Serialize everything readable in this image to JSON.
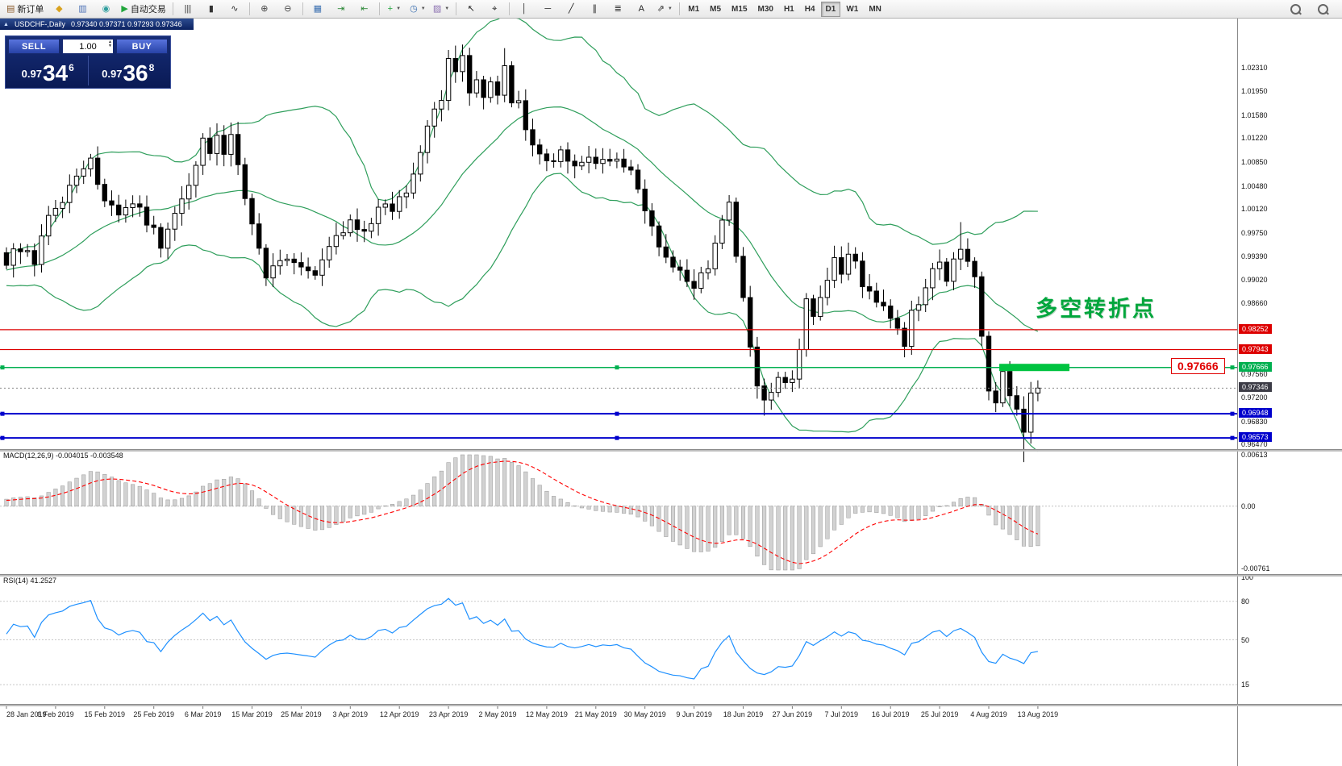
{
  "window": {
    "collapse_icon": "▲",
    "symbol": "USDCHF-,Daily",
    "ohlc": "0.97340 0.97371 0.97293 0.97346"
  },
  "toolbar": {
    "buttons": [
      {
        "name": "new-order-button",
        "glyph": "▤",
        "glyph_color": "#8a5a2a",
        "label": "新订单"
      },
      {
        "name": "market-watch-icon",
        "glyph": "◆",
        "glyph_color": "#d9a21f"
      },
      {
        "name": "data-window-icon",
        "glyph": "▥",
        "glyph_color": "#4a6fb5"
      },
      {
        "name": "navigator-icon",
        "glyph": "◉",
        "glyph_color": "#2f9e9e"
      },
      {
        "name": "autotrading-button",
        "glyph": "▶",
        "glyph_color": "#21a63c",
        "label": "自动交易"
      },
      {
        "sep": true
      },
      {
        "name": "bar-chart-icon",
        "glyph": "|||",
        "glyph_color": "#333"
      },
      {
        "name": "candlestick-chart-icon",
        "glyph": "▮",
        "glyph_color": "#333"
      },
      {
        "name": "line-chart-icon",
        "glyph": "∿",
        "glyph_color": "#333"
      },
      {
        "sep": true
      },
      {
        "name": "zoom-in-icon",
        "glyph": "⊕",
        "glyph_color": "#444"
      },
      {
        "name": "zoom-out-icon",
        "glyph": "⊖",
        "glyph_color": "#444"
      },
      {
        "sep": true
      },
      {
        "name": "tile-windows-icon",
        "glyph": "▦",
        "glyph_color": "#3a6fb0"
      },
      {
        "name": "auto-scroll-icon",
        "glyph": "⇥",
        "glyph_color": "#2f8a3a"
      },
      {
        "name": "chart-shift-icon",
        "glyph": "⇤",
        "glyph_color": "#2f8a3a"
      },
      {
        "sep": true
      },
      {
        "name": "indicators-icon",
        "glyph": "+",
        "glyph_color": "#1fa43a",
        "caret": true
      },
      {
        "name": "periods-icon",
        "glyph": "◷",
        "glyph_color": "#3a6fb0",
        "caret": true
      },
      {
        "name": "templates-icon",
        "glyph": "▨",
        "glyph_color": "#8a6fb0",
        "caret": true
      },
      {
        "sep": true
      },
      {
        "name": "cursor-icon",
        "glyph": "↖",
        "glyph_color": "#222"
      },
      {
        "name": "crosshair-icon",
        "glyph": "⌖",
        "glyph_color": "#222"
      },
      {
        "sep": true
      },
      {
        "name": "vertical-line-icon",
        "glyph": "│",
        "glyph_color": "#222"
      },
      {
        "name": "horizontal-line-icon",
        "glyph": "─",
        "glyph_color": "#222"
      },
      {
        "name": "trendline-icon",
        "glyph": "╱",
        "glyph_color": "#222"
      },
      {
        "name": "channel-icon",
        "glyph": "∥",
        "glyph_color": "#222"
      },
      {
        "name": "fibonacci-icon",
        "glyph": "≣",
        "glyph_color": "#222"
      },
      {
        "name": "text-icon",
        "glyph": "A",
        "glyph_color": "#222"
      },
      {
        "name": "arrows-icon",
        "glyph": "⇗",
        "glyph_color": "#222",
        "caret": true
      },
      {
        "sep": true
      }
    ],
    "timeframes": [
      "M1",
      "M5",
      "M15",
      "M30",
      "H1",
      "H4",
      "D1",
      "W1",
      "MN"
    ],
    "active_timeframe": "D1",
    "right_buttons": [
      {
        "name": "search-back-icon"
      },
      {
        "name": "search-forward-icon"
      }
    ]
  },
  "trade_panel": {
    "sell_label": "SELL",
    "buy_label": "BUY",
    "volume": "1.00",
    "sell_price": {
      "base": "0.97",
      "big": "34",
      "sup": "6"
    },
    "buy_price": {
      "base": "0.97",
      "big": "36",
      "sup": "8"
    }
  },
  "annotations": {
    "turning_point": "多空转折点",
    "price_callout": "0.97666"
  },
  "price_axis": {
    "ticks": [
      {
        "label": "1.02310",
        "value": 1.0231
      },
      {
        "label": "1.01950",
        "value": 1.0195
      },
      {
        "label": "1.01580",
        "value": 1.0158
      },
      {
        "label": "1.01220",
        "value": 1.0122
      },
      {
        "label": "1.00850",
        "value": 1.0085
      },
      {
        "label": "1.00480",
        "value": 1.0048
      },
      {
        "label": "1.00120",
        "value": 1.0012
      },
      {
        "label": "0.99750",
        "value": 0.9975
      },
      {
        "label": "0.99390",
        "value": 0.9939
      },
      {
        "label": "0.99020",
        "value": 0.9902
      },
      {
        "label": "0.98660",
        "value": 0.9866
      },
      {
        "label": "0.97560",
        "value": 0.9756
      },
      {
        "label": "0.97200",
        "value": 0.972
      },
      {
        "label": "0.96830",
        "value": 0.9683
      },
      {
        "label": "0.96470",
        "value": 0.9647
      }
    ]
  },
  "macd_panel": {
    "label": "MACD(12,26,9) -0.004015 -0.003548",
    "axis_top": "0.00613",
    "axis_zero": "0.00",
    "axis_bottom": "-0.00761",
    "scale_max": 0.00613,
    "scale_min": -0.00761
  },
  "rsi_panel": {
    "label": "RSI(14) 41.2527",
    "axis_labels": [
      {
        "text": "100",
        "value": 100
      },
      {
        "text": "80",
        "value": 80
      },
      {
        "text": "50",
        "value": 50
      },
      {
        "text": "15",
        "value": 15
      }
    ],
    "levels": [
      80,
      50,
      15
    ]
  },
  "time_axis": {
    "label_step": 7,
    "labels": [
      "28 Jan 2019",
      "6 Feb 2019",
      "15 Feb 2019",
      "25 Feb 2019",
      "6 Mar 2019",
      "15 Mar 2019",
      "25 Mar 2019",
      "3 Apr 2019",
      "12 Apr 2019",
      "23 Apr 2019",
      "2 May 2019",
      "12 May 2019",
      "21 May 2019",
      "30 May 2019",
      "9 Jun 2019",
      "18 Jun 2019",
      "27 Jun 2019",
      "7 Jul 2019",
      "16 Jul 2019",
      "25 Jul 2019",
      "4 Aug 2019",
      "13 Aug 2019"
    ]
  },
  "colors": {
    "bollinger": "#2e9e5b",
    "candle_up_fill": "#ffffff",
    "candle_down_fill": "#000000",
    "candle_stroke": "#000000",
    "macd_bar_fill": "#d2d2d2",
    "macd_bar_stroke": "#979797",
    "macd_signal": "#ff0000",
    "rsi_line": "#1e90ff",
    "level_red": "#dd0000",
    "level_green": "#00b050",
    "level_green_bright": "#00c340",
    "level_blue": "#0000cc",
    "current_badge": "#3c3c46",
    "current_line": "#888888"
  },
  "chart_data": {
    "type": "candlestick",
    "symbol": "USDCHF",
    "timeframe": "Daily",
    "count": 148,
    "y_min": 0.964,
    "y_max": 1.029,
    "current_price": 0.97346,
    "indicators": {
      "bollinger": {
        "period": 20,
        "deviation": 2
      },
      "macd": {
        "fast": 12,
        "slow": 26,
        "signal": 9
      },
      "rsi": {
        "period": 14
      }
    },
    "levels": [
      {
        "price": 0.98252,
        "label": "0.98252",
        "color": "red"
      },
      {
        "price": 0.97943,
        "label": "0.97943",
        "color": "red"
      },
      {
        "price": 0.97666,
        "label": "0.97666",
        "color": "green",
        "highlight": {
          "from_index": 141.5,
          "to_index": 151.5,
          "thickness": 9
        }
      },
      {
        "price": 0.96948,
        "label": "0.96948",
        "color": "blue"
      },
      {
        "price": 0.96573,
        "label": "0.96573",
        "color": "blue"
      }
    ],
    "current_label": "0.97346",
    "long_wicks": [
      {
        "index": 71,
        "up": 0.0016,
        "down": 0
      },
      {
        "index": 108,
        "up": 0,
        "down": 0.0012
      },
      {
        "index": 136,
        "up": 0.0028,
        "down": 0
      },
      {
        "index": 145,
        "up": 0,
        "down": 0.003
      }
    ],
    "anchors": [
      [
        0,
        0.9925
      ],
      [
        2,
        0.9955
      ],
      [
        4,
        0.9935
      ],
      [
        7,
        1.002
      ],
      [
        9,
        1.004
      ],
      [
        11,
        1.0075
      ],
      [
        12,
        1.009
      ],
      [
        14,
        1.003
      ],
      [
        16,
        0.9995
      ],
      [
        18,
        1.0015
      ],
      [
        20,
        0.9995
      ],
      [
        21,
        0.999
      ],
      [
        22,
        0.9955
      ],
      [
        23,
        0.9975
      ],
      [
        25,
        1.002
      ],
      [
        27,
        1.009
      ],
      [
        28,
        1.0125
      ],
      [
        29,
        1.0105
      ],
      [
        30,
        1.013
      ],
      [
        31,
        1.01
      ],
      [
        32,
        1.012
      ],
      [
        33,
        1.007
      ],
      [
        34,
        1.003
      ],
      [
        35,
        0.999
      ],
      [
        36,
        0.9945
      ],
      [
        37,
        0.9915
      ],
      [
        39,
        0.993
      ],
      [
        41,
        0.992
      ],
      [
        42,
        0.9925
      ],
      [
        44,
        0.9915
      ],
      [
        46,
        0.9955
      ],
      [
        48,
        0.998
      ],
      [
        49,
        0.9995
      ],
      [
        51,
        0.998
      ],
      [
        53,
        1.0005
      ],
      [
        55,
        1.0015
      ],
      [
        56,
        1.0025
      ],
      [
        58,
        1.007
      ],
      [
        60,
        1.0135
      ],
      [
        61,
        1.016
      ],
      [
        62,
        1.0185
      ],
      [
        63,
        1.0235
      ],
      [
        64,
        1.0215
      ],
      [
        65,
        1.024
      ],
      [
        66,
        1.02
      ],
      [
        67,
        1.0215
      ],
      [
        68,
        1.019
      ],
      [
        69,
        1.021
      ],
      [
        70,
        1.0195
      ],
      [
        71,
        1.023
      ],
      [
        72,
        1.0175
      ],
      [
        73,
        1.019
      ],
      [
        74,
        1.013
      ],
      [
        75,
        1.0105
      ],
      [
        76,
        1.009
      ],
      [
        77,
        1.0085
      ],
      [
        79,
        1.0095
      ],
      [
        81,
        1.007
      ],
      [
        83,
        1.009
      ],
      [
        84,
        1.008
      ],
      [
        86,
        1.0095
      ],
      [
        88,
        1.0085
      ],
      [
        90,
        1.004
      ],
      [
        91,
        1.0
      ],
      [
        93,
        0.996
      ],
      [
        95,
        0.9915
      ],
      [
        97,
        0.99
      ],
      [
        98,
        0.9895
      ],
      [
        100,
        0.993
      ],
      [
        101,
        0.995
      ],
      [
        102,
        0.9985
      ],
      [
        103,
        1.002
      ],
      [
        104,
        0.9945
      ],
      [
        105,
        0.9865
      ],
      [
        106,
        0.9795
      ],
      [
        107,
        0.9745
      ],
      [
        108,
        0.971
      ],
      [
        109,
        0.9725
      ],
      [
        110,
        0.976
      ],
      [
        111,
        0.9735
      ],
      [
        112,
        0.9755
      ],
      [
        113,
        0.98
      ],
      [
        114,
        0.9865
      ],
      [
        115,
        0.9855
      ],
      [
        116,
        0.988
      ],
      [
        117,
        0.9905
      ],
      [
        118,
        0.993
      ],
      [
        119,
        0.992
      ],
      [
        120,
        0.9945
      ],
      [
        121,
        0.993
      ],
      [
        122,
        0.99
      ],
      [
        124,
        0.9875
      ],
      [
        126,
        0.985
      ],
      [
        127,
        0.9825
      ],
      [
        128,
        0.9805
      ],
      [
        129,
        0.9845
      ],
      [
        130,
        0.987
      ],
      [
        131,
        0.99
      ],
      [
        132,
        0.9925
      ],
      [
        133,
        0.993
      ],
      [
        134,
        0.991
      ],
      [
        135,
        0.994
      ],
      [
        136,
        0.9955
      ],
      [
        137,
        0.993
      ],
      [
        138,
        0.9905
      ],
      [
        139,
        0.982
      ],
      [
        140,
        0.973
      ],
      [
        141,
        0.9705
      ],
      [
        142,
        0.9765
      ],
      [
        143,
        0.973
      ],
      [
        144,
        0.9705
      ],
      [
        145,
        0.9665
      ],
      [
        146,
        0.9725
      ],
      [
        147,
        0.97346
      ]
    ]
  }
}
